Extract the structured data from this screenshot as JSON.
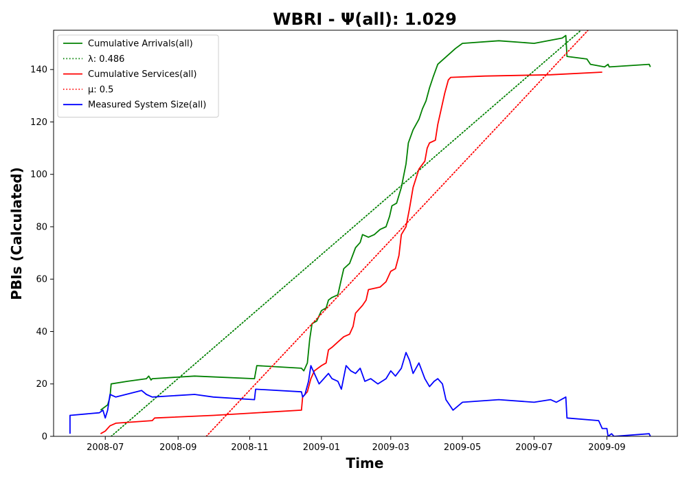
{
  "chart_data": {
    "type": "line",
    "title": "WBRI -  Ψ(all): 1.029",
    "xlabel": "Time",
    "ylabel": "PBIs (Calculated)",
    "xlim": [
      "2008-05-18",
      "2009-10-31"
    ],
    "ylim": [
      0,
      155
    ],
    "x_ticks": [
      "2008-07",
      "2008-09",
      "2008-11",
      "2009-01",
      "2009-03",
      "2009-05",
      "2009-07",
      "2009-09"
    ],
    "y_ticks": [
      0,
      20,
      40,
      60,
      80,
      100,
      120,
      140
    ],
    "legend_position": "top-left",
    "grid": false,
    "series": [
      {
        "name": "Cumulative Arrivals(all)",
        "color": "#008000",
        "style": "solid",
        "points": [
          [
            "2008-06-27",
            10
          ],
          [
            "2008-07-03",
            12
          ],
          [
            "2008-07-05",
            15
          ],
          [
            "2008-07-06",
            20
          ],
          [
            "2008-07-20",
            21
          ],
          [
            "2008-08-05",
            22
          ],
          [
            "2008-08-07",
            23
          ],
          [
            "2008-08-09",
            21.5
          ],
          [
            "2008-08-10",
            22
          ],
          [
            "2008-09-15",
            23
          ],
          [
            "2008-11-05",
            22
          ],
          [
            "2008-11-07",
            27
          ],
          [
            "2008-12-15",
            26
          ],
          [
            "2008-12-17",
            25
          ],
          [
            "2008-12-20",
            28
          ],
          [
            "2008-12-22",
            37
          ],
          [
            "2008-12-24",
            43
          ],
          [
            "2008-12-28",
            44
          ],
          [
            "2009-01-01",
            48
          ],
          [
            "2009-01-05",
            49
          ],
          [
            "2009-01-07",
            52
          ],
          [
            "2009-01-10",
            53
          ],
          [
            "2009-01-15",
            54
          ],
          [
            "2009-01-18",
            60
          ],
          [
            "2009-01-20",
            64
          ],
          [
            "2009-01-25",
            66
          ],
          [
            "2009-01-30",
            72
          ],
          [
            "2009-02-03",
            74
          ],
          [
            "2009-02-05",
            77
          ],
          [
            "2009-02-10",
            76
          ],
          [
            "2009-02-15",
            77
          ],
          [
            "2009-02-20",
            79
          ],
          [
            "2009-02-25",
            80
          ],
          [
            "2009-02-28",
            84
          ],
          [
            "2009-03-02",
            88
          ],
          [
            "2009-03-06",
            89
          ],
          [
            "2009-03-10",
            95
          ],
          [
            "2009-03-14",
            104
          ],
          [
            "2009-03-16",
            112
          ],
          [
            "2009-03-20",
            117
          ],
          [
            "2009-03-25",
            121
          ],
          [
            "2009-03-28",
            125
          ],
          [
            "2009-03-31",
            128
          ],
          [
            "2009-04-03",
            133
          ],
          [
            "2009-04-06",
            137
          ],
          [
            "2009-04-10",
            142
          ],
          [
            "2009-04-15",
            144
          ],
          [
            "2009-04-20",
            146
          ],
          [
            "2009-04-25",
            148
          ],
          [
            "2009-05-01",
            150
          ],
          [
            "2009-06-01",
            151
          ],
          [
            "2009-07-01",
            150
          ],
          [
            "2009-07-25",
            152
          ],
          [
            "2009-07-28",
            153
          ],
          [
            "2009-07-29",
            145
          ],
          [
            "2009-08-15",
            144
          ],
          [
            "2009-08-18",
            142
          ],
          [
            "2009-08-30",
            141
          ],
          [
            "2009-09-02",
            142
          ],
          [
            "2009-09-03",
            141
          ],
          [
            "2009-10-07",
            142
          ],
          [
            "2009-10-08",
            141
          ]
        ]
      },
      {
        "name": "λ: 0.486",
        "color": "#008000",
        "style": "dotted",
        "points": [
          [
            "2008-07-06",
            0
          ],
          [
            "2009-08-10",
            155
          ]
        ]
      },
      {
        "name": "Cumulative Services(all)",
        "color": "#ff0000",
        "style": "solid",
        "points": [
          [
            "2008-06-27",
            1
          ],
          [
            "2008-07-01",
            2
          ],
          [
            "2008-07-05",
            4
          ],
          [
            "2008-07-10",
            5
          ],
          [
            "2008-08-10",
            6
          ],
          [
            "2008-08-12",
            7
          ],
          [
            "2008-10-01",
            8
          ],
          [
            "2008-12-15",
            10
          ],
          [
            "2008-12-16",
            15
          ],
          [
            "2008-12-20",
            17
          ],
          [
            "2008-12-23",
            22
          ],
          [
            "2008-12-26",
            25
          ],
          [
            "2009-01-01",
            27
          ],
          [
            "2009-01-05",
            28
          ],
          [
            "2009-01-07",
            33
          ],
          [
            "2009-01-10",
            34
          ],
          [
            "2009-01-15",
            36
          ],
          [
            "2009-01-20",
            38
          ],
          [
            "2009-01-25",
            39
          ],
          [
            "2009-01-28",
            42
          ],
          [
            "2009-01-30",
            47
          ],
          [
            "2009-02-05",
            50
          ],
          [
            "2009-02-08",
            52
          ],
          [
            "2009-02-10",
            56
          ],
          [
            "2009-02-20",
            57
          ],
          [
            "2009-02-25",
            59
          ],
          [
            "2009-03-01",
            63
          ],
          [
            "2009-03-05",
            64
          ],
          [
            "2009-03-08",
            69
          ],
          [
            "2009-03-10",
            77
          ],
          [
            "2009-03-14",
            80
          ],
          [
            "2009-03-17",
            87
          ],
          [
            "2009-03-20",
            95
          ],
          [
            "2009-03-25",
            102
          ],
          [
            "2009-03-30",
            105
          ],
          [
            "2009-04-01",
            110
          ],
          [
            "2009-04-03",
            112
          ],
          [
            "2009-04-08",
            113
          ],
          [
            "2009-04-10",
            119
          ],
          [
            "2009-04-13",
            125
          ],
          [
            "2009-04-16",
            131
          ],
          [
            "2009-04-19",
            136
          ],
          [
            "2009-04-21",
            137
          ],
          [
            "2009-05-20",
            137.5
          ],
          [
            "2009-07-15",
            138
          ],
          [
            "2009-08-28",
            139
          ]
        ]
      },
      {
        "name": "μ: 0.5",
        "color": "#ff0000",
        "style": "dotted",
        "points": [
          [
            "2008-09-25",
            0
          ],
          [
            "2009-08-16",
            155
          ]
        ]
      },
      {
        "name": "Measured System Size(all)",
        "color": "#0000ff",
        "style": "solid",
        "points": [
          [
            "2008-06-01",
            1
          ],
          [
            "2008-06-01",
            8
          ],
          [
            "2008-06-26",
            9
          ],
          [
            "2008-06-29",
            10
          ],
          [
            "2008-07-01",
            7
          ],
          [
            "2008-07-03",
            10
          ],
          [
            "2008-07-05",
            16
          ],
          [
            "2008-07-10",
            15
          ],
          [
            "2008-08-01",
            17.5
          ],
          [
            "2008-08-05",
            16
          ],
          [
            "2008-08-10",
            15
          ],
          [
            "2008-09-15",
            16
          ],
          [
            "2008-10-01",
            15
          ],
          [
            "2008-11-05",
            14
          ],
          [
            "2008-11-06",
            18
          ],
          [
            "2008-12-15",
            17
          ],
          [
            "2008-12-16",
            15
          ],
          [
            "2008-12-18",
            16
          ],
          [
            "2008-12-21",
            21
          ],
          [
            "2008-12-23",
            27
          ],
          [
            "2008-12-26",
            24
          ],
          [
            "2008-12-30",
            20
          ],
          [
            "2009-01-03",
            22
          ],
          [
            "2009-01-07",
            24
          ],
          [
            "2009-01-10",
            22
          ],
          [
            "2009-01-15",
            21
          ],
          [
            "2009-01-18",
            18
          ],
          [
            "2009-01-22",
            27
          ],
          [
            "2009-01-26",
            25
          ],
          [
            "2009-01-30",
            24
          ],
          [
            "2009-02-03",
            26
          ],
          [
            "2009-02-07",
            21
          ],
          [
            "2009-02-12",
            22
          ],
          [
            "2009-02-18",
            20
          ],
          [
            "2009-02-25",
            22
          ],
          [
            "2009-03-01",
            25
          ],
          [
            "2009-03-05",
            23
          ],
          [
            "2009-03-10",
            26
          ],
          [
            "2009-03-14",
            32
          ],
          [
            "2009-03-17",
            29
          ],
          [
            "2009-03-20",
            24
          ],
          [
            "2009-03-25",
            28
          ],
          [
            "2009-03-30",
            22
          ],
          [
            "2009-04-03",
            19
          ],
          [
            "2009-04-07",
            21
          ],
          [
            "2009-04-10",
            22
          ],
          [
            "2009-04-14",
            20
          ],
          [
            "2009-04-17",
            14
          ],
          [
            "2009-04-20",
            12
          ],
          [
            "2009-04-23",
            10
          ],
          [
            "2009-05-01",
            13
          ],
          [
            "2009-06-01",
            14
          ],
          [
            "2009-07-01",
            13
          ],
          [
            "2009-07-15",
            14
          ],
          [
            "2009-07-20",
            13
          ],
          [
            "2009-07-28",
            15
          ],
          [
            "2009-07-29",
            7
          ],
          [
            "2009-08-25",
            6
          ],
          [
            "2009-08-28",
            3
          ],
          [
            "2009-09-01",
            3
          ],
          [
            "2009-09-02",
            0
          ],
          [
            "2009-09-05",
            1
          ],
          [
            "2009-09-07",
            0
          ],
          [
            "2009-10-07",
            1
          ],
          [
            "2009-10-08",
            0
          ]
        ]
      }
    ]
  }
}
